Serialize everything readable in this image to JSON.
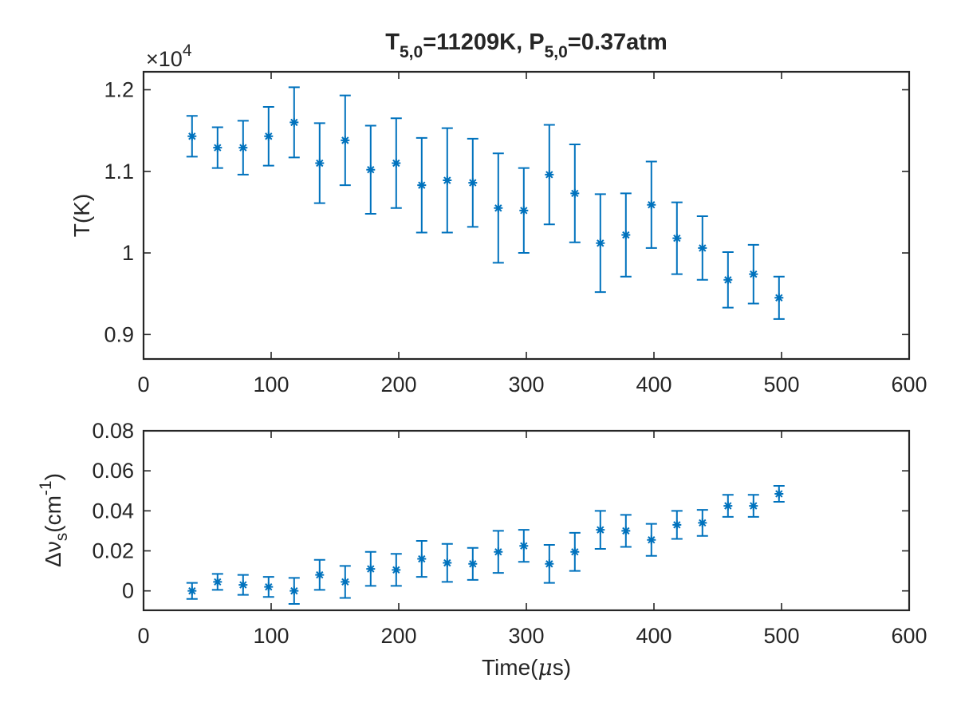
{
  "title": {
    "T_main": "T",
    "T_sub": "5,0",
    "T_value": "=11209K, ",
    "P_main": "P",
    "P_sub": "5,0",
    "P_value": "=0.37atm"
  },
  "colors": {
    "series": "#0072BD",
    "axes": "#262626"
  },
  "chart_data": [
    {
      "type": "scatter",
      "name": "temperature",
      "error_bars": true,
      "marker": "asterisk",
      "ylabel": "T(K)",
      "y_exponent": {
        "base": "×10",
        "power": "4"
      },
      "xlim": [
        0,
        600
      ],
      "ylim": [
        0.87,
        1.222
      ],
      "xticks": [
        0,
        100,
        200,
        300,
        400,
        500,
        600
      ],
      "xtick_labels": [
        "0",
        "100",
        "200",
        "300",
        "400",
        "500",
        "600"
      ],
      "yticks": [
        0.9,
        1.0,
        1.1,
        1.2
      ],
      "ytick_labels": [
        "0.9",
        "1",
        "1.1",
        "1.2"
      ],
      "x": [
        38,
        58,
        78,
        98,
        118,
        138,
        158,
        178,
        198,
        218,
        238,
        258,
        278,
        298,
        318,
        338,
        358,
        378,
        398,
        418,
        438,
        458,
        478,
        498
      ],
      "y": [
        1.143,
        1.129,
        1.129,
        1.143,
        1.16,
        1.11,
        1.138,
        1.102,
        1.11,
        1.083,
        1.089,
        1.086,
        1.055,
        1.052,
        1.096,
        1.073,
        1.012,
        1.022,
        1.059,
        1.018,
        1.006,
        0.967,
        0.974,
        0.945
      ],
      "err": [
        0.025,
        0.025,
        0.033,
        0.036,
        0.043,
        0.049,
        0.055,
        0.054,
        0.055,
        0.058,
        0.064,
        0.054,
        0.067,
        0.052,
        0.061,
        0.06,
        0.06,
        0.051,
        0.053,
        0.044,
        0.039,
        0.034,
        0.036,
        0.026
      ]
    },
    {
      "type": "scatter",
      "name": "linewidth",
      "error_bars": true,
      "marker": "asterisk",
      "ylabel": {
        "main": "Δν",
        "sub": "s",
        "unit_pre": "(cm",
        "unit_sup": "-1",
        "unit_post": ")"
      },
      "xlabel": {
        "pre": "Time(",
        "mu": "μ",
        "post": "s)"
      },
      "xlim": [
        0,
        600
      ],
      "ylim": [
        -0.0097,
        0.08
      ],
      "xticks": [
        0,
        100,
        200,
        300,
        400,
        500,
        600
      ],
      "xtick_labels": [
        "0",
        "100",
        "200",
        "300",
        "400",
        "500",
        "600"
      ],
      "yticks": [
        0,
        0.02,
        0.04,
        0.06,
        0.08
      ],
      "ytick_labels": [
        "0",
        "0.02",
        "0.04",
        "0.06",
        "0.08"
      ],
      "x": [
        38,
        58,
        78,
        98,
        118,
        138,
        158,
        178,
        198,
        218,
        238,
        258,
        278,
        298,
        318,
        338,
        358,
        378,
        398,
        418,
        438,
        458,
        478,
        498
      ],
      "y": [
        0.0,
        0.0045,
        0.003,
        0.002,
        0.0,
        0.008,
        0.0045,
        0.011,
        0.0105,
        0.016,
        0.014,
        0.0135,
        0.0195,
        0.0225,
        0.0135,
        0.0195,
        0.0305,
        0.03,
        0.0255,
        0.033,
        0.034,
        0.0425,
        0.0425,
        0.0485
      ],
      "err": [
        0.004,
        0.004,
        0.005,
        0.005,
        0.0065,
        0.0075,
        0.008,
        0.0085,
        0.008,
        0.009,
        0.0095,
        0.008,
        0.0105,
        0.008,
        0.0095,
        0.0095,
        0.0095,
        0.008,
        0.008,
        0.007,
        0.0065,
        0.0055,
        0.0055,
        0.004
      ]
    }
  ]
}
